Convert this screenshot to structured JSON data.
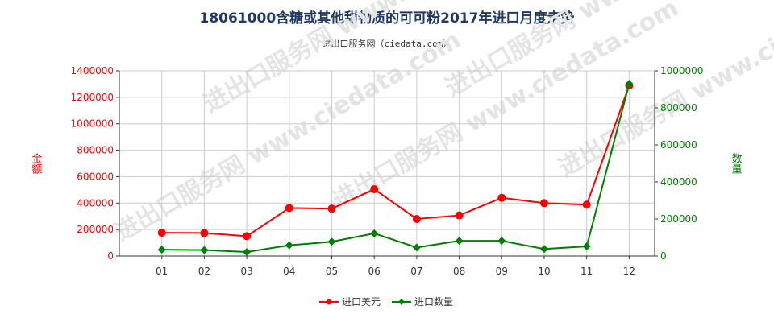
{
  "chart_data": {
    "type": "line",
    "title": "18061000含糖或其他甜物质的可可粉2017年进口月度走势",
    "subtitle": "进出口服务网（ciedata.com）",
    "watermark": "进出口服务网 www.ciedata.com",
    "categories": [
      "01",
      "02",
      "03",
      "04",
      "05",
      "06",
      "07",
      "08",
      "09",
      "10",
      "11",
      "12"
    ],
    "y_left": {
      "label": "金额",
      "ylim": [
        0,
        1400000
      ],
      "ticks": [
        "0",
        "200000",
        "400000",
        "600000",
        "800000",
        "1000000",
        "1200000",
        "1400000"
      ]
    },
    "y_right": {
      "label": "数量",
      "ylim": [
        0,
        1000000
      ],
      "ticks": [
        "0",
        "200000",
        "400000",
        "600000",
        "800000",
        "1000000"
      ]
    },
    "series": [
      {
        "name": "进口美元",
        "axis": "left",
        "color": "#ff0000",
        "marker": "circle",
        "values": [
          176000,
          174000,
          150000,
          363000,
          358000,
          505000,
          280000,
          307000,
          440000,
          400000,
          388000,
          1290000
        ]
      },
      {
        "name": "进口数量",
        "axis": "right",
        "color": "#008000",
        "marker": "diamond",
        "values": [
          34000,
          32000,
          22000,
          58000,
          77000,
          122000,
          46000,
          82000,
          82000,
          38000,
          52000,
          930000
        ]
      }
    ],
    "grid": true,
    "legend": "bottom-center"
  }
}
